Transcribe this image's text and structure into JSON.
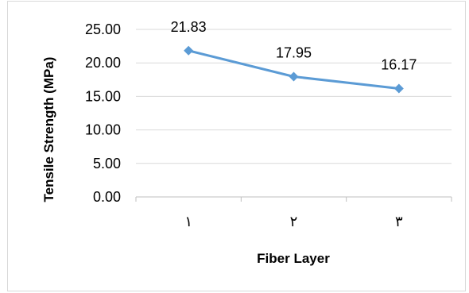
{
  "chart_data": {
    "type": "line",
    "title": "",
    "xlabel": "Fiber Layer",
    "ylabel": "Tensile Strength (MPa)",
    "categories": [
      "١",
      "٢",
      "٣"
    ],
    "series": [
      {
        "values": [
          21.83,
          17.95,
          16.17
        ],
        "labels": [
          "21.83",
          "17.95",
          "16.17"
        ]
      }
    ],
    "ylim": [
      0,
      25
    ],
    "yticks": [
      "0.00",
      "5.00",
      "10.00",
      "15.00",
      "20.00",
      "25.00"
    ],
    "ytick_values": [
      0,
      5,
      10,
      15,
      20,
      25
    ],
    "grid": true,
    "legend": "none",
    "colors": {
      "series": "#5b9bd5",
      "grid": "#d9d9d9",
      "axis": "#bfbfbf"
    },
    "marker": "diamond"
  }
}
